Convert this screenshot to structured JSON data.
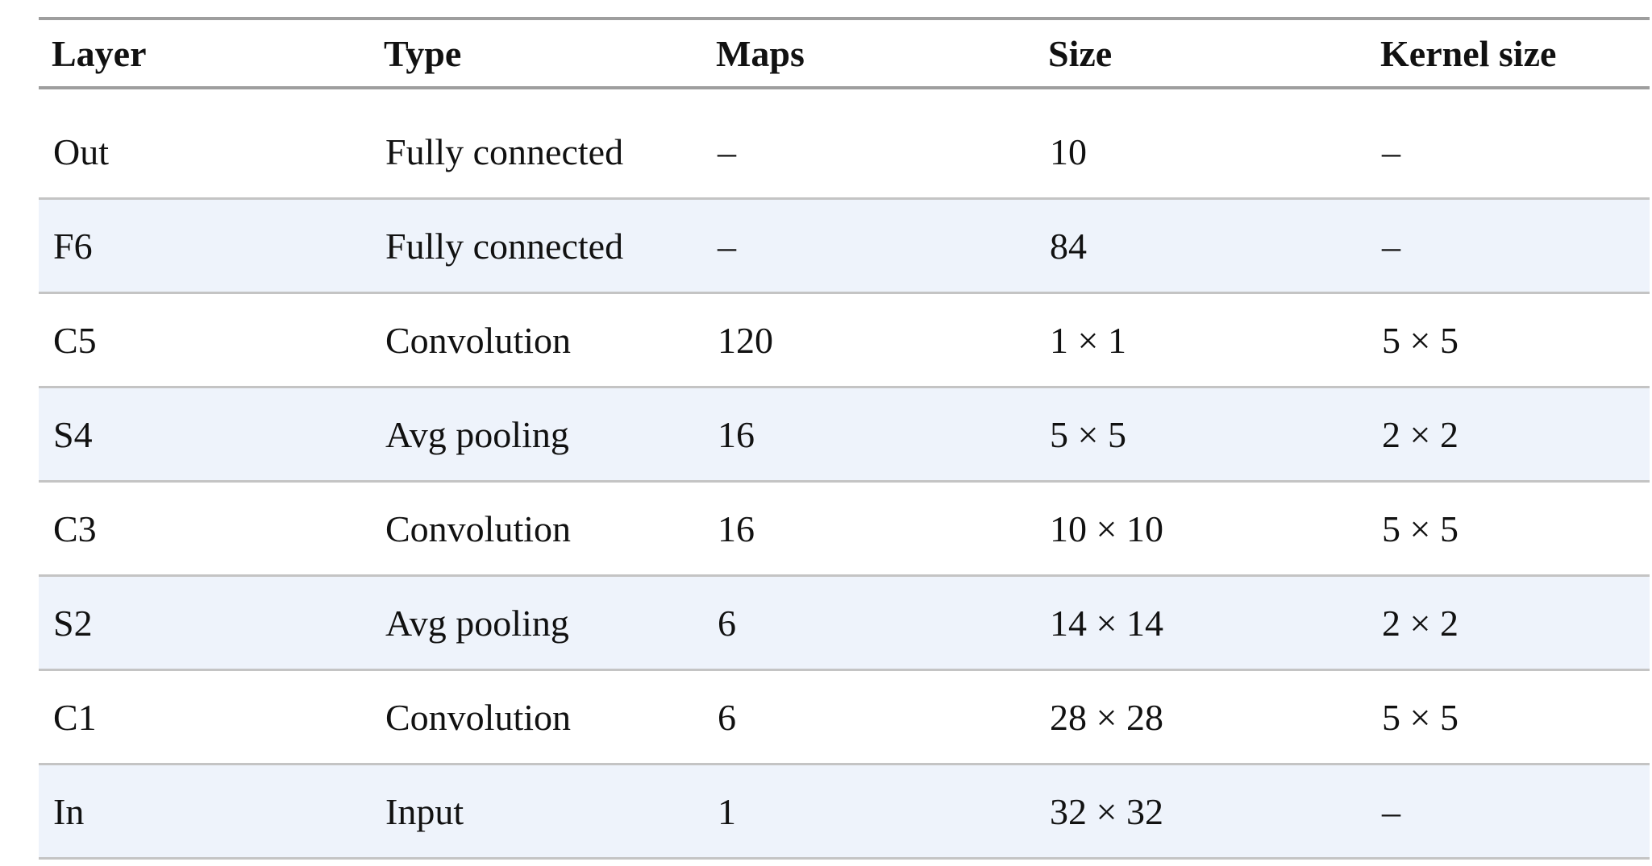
{
  "table": {
    "headers": [
      "Layer",
      "Type",
      "Maps",
      "Size",
      "Kernel size"
    ],
    "rows": [
      [
        "Out",
        "Fully connected",
        "–",
        "10",
        "–"
      ],
      [
        "F6",
        "Fully connected",
        "–",
        "84",
        "–"
      ],
      [
        "C5",
        "Convolution",
        "120",
        "1 × 1",
        "5 × 5"
      ],
      [
        "S4",
        "Avg pooling",
        "16",
        "5 × 5",
        "2 × 2"
      ],
      [
        "C3",
        "Convolution",
        "16",
        "10 × 10",
        "5 × 5"
      ],
      [
        "S2",
        "Avg pooling",
        "6",
        "14 × 14",
        "2 × 2"
      ],
      [
        "C1",
        "Convolution",
        "6",
        "28 × 28",
        "5 × 5"
      ],
      [
        "In",
        "Input",
        "1",
        "32 × 32",
        "–"
      ]
    ]
  },
  "colors": {
    "rule": "#9e9e9e",
    "row_divider": "#c4c4c4",
    "stripe": "#eef3fb"
  }
}
